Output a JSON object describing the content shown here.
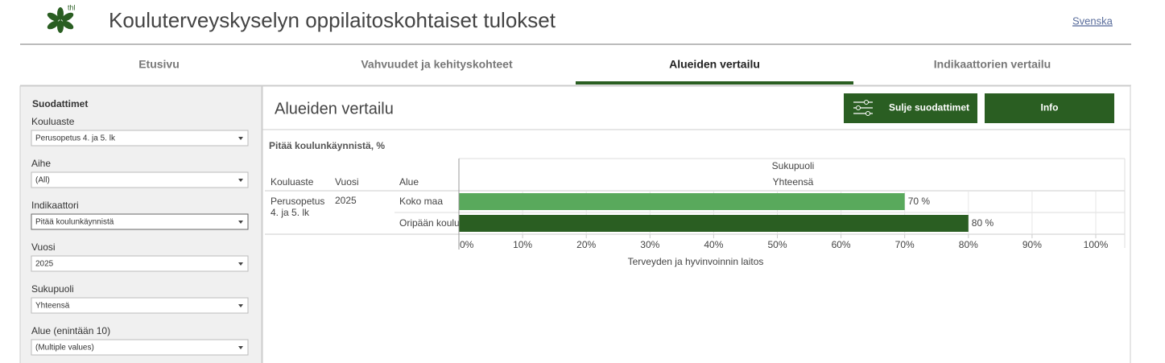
{
  "header": {
    "logo_text": "thl",
    "title": "Kouluterveyskyselyn oppilaitoskohtaiset tulokset",
    "language_link": "Svenska"
  },
  "tabs": [
    {
      "label": "Etusivu",
      "active": false
    },
    {
      "label": "Vahvuudet ja kehityskohteet",
      "active": false
    },
    {
      "label": "Alueiden vertailu",
      "active": true
    },
    {
      "label": "Indikaattorien vertailu",
      "active": false
    }
  ],
  "sidebar": {
    "title": "Suodattimet",
    "filters": [
      {
        "label": "Kouluaste",
        "value": "Perusopetus 4. ja 5. lk"
      },
      {
        "label": "Aihe",
        "value": "(All)"
      },
      {
        "label": "Indikaattori",
        "value": "Pitää koulunkäynnistä"
      },
      {
        "label": "Vuosi",
        "value": "2025"
      },
      {
        "label": "Sukupuoli",
        "value": "Yhteensä"
      },
      {
        "label": "Alue (enintään 10)",
        "value": "(Multiple values)"
      }
    ]
  },
  "panel": {
    "title": "Alueiden vertailu",
    "buttons": [
      "Sulje suodattimet",
      "Info"
    ]
  },
  "chart_data": {
    "type": "bar",
    "title": "Pitää koulunkäynnistä, %",
    "column_headers": [
      "Kouluaste",
      "Vuosi",
      "Alue"
    ],
    "group_header": "Sukupuoli",
    "group_value": "Yhteensä",
    "row_group": [
      "Perusopetus 4. ja 5. lk",
      "2025"
    ],
    "categories": [
      "Koko maa",
      "Oripään koulu"
    ],
    "values": [
      70,
      80
    ],
    "value_labels": [
      "70 %",
      "80 %"
    ],
    "colors": [
      "#59a95c",
      "#2a5e22"
    ],
    "xlim": [
      0,
      100
    ],
    "xticks": [
      {
        "value": 0,
        "label": "0%"
      },
      {
        "value": 10,
        "label": "10%"
      },
      {
        "value": 20,
        "label": "20%"
      },
      {
        "value": 30,
        "label": "30%"
      },
      {
        "value": 40,
        "label": "40%"
      },
      {
        "value": 50,
        "label": "50%"
      },
      {
        "value": 60,
        "label": "60%"
      },
      {
        "value": 70,
        "label": "70%"
      },
      {
        "value": 80,
        "label": "80%"
      },
      {
        "value": 90,
        "label": "90%"
      },
      {
        "value": 100,
        "label": "100%"
      }
    ],
    "grid": true,
    "source": "Terveyden ja hyvinvoinnin laitos"
  }
}
